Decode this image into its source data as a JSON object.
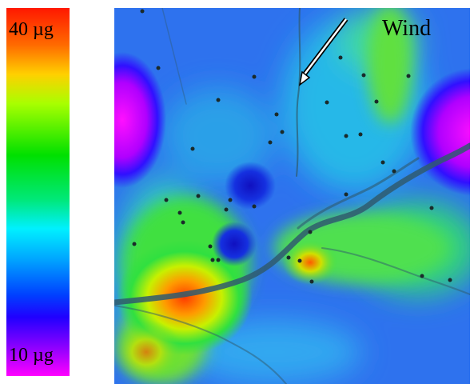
{
  "legend": {
    "max_label": "40 µg",
    "min_label": "10 µg",
    "max_value": 40,
    "min_value": 10,
    "unit": "µg",
    "colors": [
      "#ff1800",
      "#ff6a00",
      "#ffd000",
      "#a8ff00",
      "#00e000",
      "#00e878",
      "#00f0ff",
      "#00a8ff",
      "#0040ff",
      "#2000ff",
      "#8a00ff",
      "#ff00ff"
    ]
  },
  "map": {
    "wind_label": "Wind",
    "base_color": "#2e72ee",
    "sample_color": "#1a2a2a",
    "river_color": "#2f5a6e"
  }
}
